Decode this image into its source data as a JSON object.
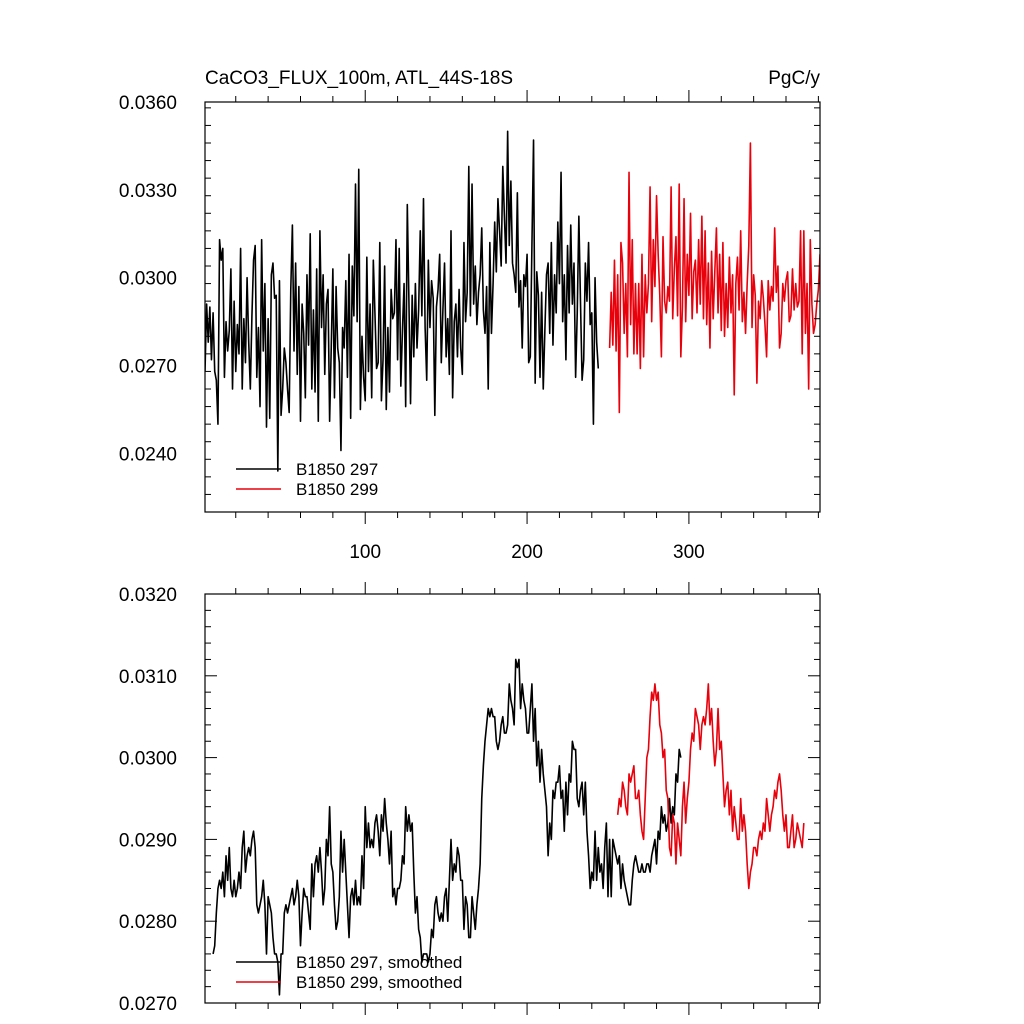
{
  "chart_data": [
    {
      "type": "line",
      "title": "CaCO3_FLUX_100m, ATL_44S-18S",
      "units": "PgC/y",
      "xlim": [
        1,
        381
      ],
      "ylim": [
        0.022,
        0.036
      ],
      "xticks": [
        100,
        200,
        300
      ],
      "yticks": [
        "0.0240",
        "0.0270",
        "0.0300",
        "0.0330",
        "0.0360"
      ],
      "legend_position": "bottom-left",
      "series": [
        {
          "name": "B1850 297",
          "color": "#000000",
          "x_start": 1,
          "values": [
            0.0268,
            0.0291,
            0.0278,
            0.029,
            0.0272,
            0.0288,
            0.0268,
            0.0265,
            0.025,
            0.0313,
            0.0306,
            0.031,
            0.0266,
            0.0285,
            0.0275,
            0.0282,
            0.0303,
            0.0262,
            0.0292,
            0.0268,
            0.0284,
            0.0274,
            0.031,
            0.0262,
            0.0286,
            0.0271,
            0.03,
            0.0278,
            0.0262,
            0.0287,
            0.0306,
            0.0311,
            0.0266,
            0.0283,
            0.0256,
            0.0313,
            0.0275,
            0.0298,
            0.0249,
            0.0286,
            0.0252,
            0.0301,
            0.0305,
            0.0293,
            0.0294,
            0.0234,
            0.0299,
            0.0253,
            0.0262,
            0.0276,
            0.0271,
            0.0262,
            0.0254,
            0.0296,
            0.0318,
            0.0275,
            0.0305,
            0.0267,
            0.0297,
            0.0251,
            0.0291,
            0.0281,
            0.0259,
            0.0301,
            0.0277,
            0.0315,
            0.0262,
            0.0289,
            0.0261,
            0.0303,
            0.0251,
            0.0316,
            0.0283,
            0.0301,
            0.0267,
            0.0291,
            0.0296,
            0.0251,
            0.0276,
            0.0303,
            0.0259,
            0.0297,
            0.0276,
            0.0271,
            0.0241,
            0.0283,
            0.0276,
            0.0299,
            0.0266,
            0.0308,
            0.0252,
            0.0304,
            0.0287,
            0.0332,
            0.0285,
            0.0337,
            0.0255,
            0.028,
            0.0266,
            0.0258,
            0.0307,
            0.0268,
            0.0291,
            0.0259,
            0.0306,
            0.0288,
            0.0269,
            0.0271,
            0.0312,
            0.0258,
            0.0272,
            0.0304,
            0.0255,
            0.0283,
            0.0261,
            0.0296,
            0.0286,
            0.0288,
            0.0313,
            0.0272,
            0.031,
            0.0263,
            0.0282,
            0.0298,
            0.0256,
            0.0325,
            0.0292,
            0.0257,
            0.0294,
            0.0273,
            0.0298,
            0.0276,
            0.0289,
            0.0316,
            0.0287,
            0.0327,
            0.0283,
            0.0265,
            0.0306,
            0.0283,
            0.0299,
            0.0293,
            0.0253,
            0.029,
            0.0296,
            0.0308,
            0.0271,
            0.0289,
            0.0305,
            0.0273,
            0.0286,
            0.0267,
            0.0316,
            0.0259,
            0.0285,
            0.0291,
            0.0273,
            0.0296,
            0.0276,
            0.0267,
            0.0312,
            0.0285,
            0.0295,
            0.0338,
            0.0287,
            0.0332,
            0.0291,
            0.0304,
            0.0284,
            0.0295,
            0.0301,
            0.0317,
            0.0289,
            0.0281,
            0.0297,
            0.0262,
            0.0312,
            0.0281,
            0.0298,
            0.0319,
            0.0302,
            0.0327,
            0.0316,
            0.0304,
            0.0338,
            0.0321,
            0.0305,
            0.035,
            0.0311,
            0.0333,
            0.0305,
            0.0301,
            0.0295,
            0.0329,
            0.029,
            0.0299,
            0.0276,
            0.0301,
            0.0297,
            0.0308,
            0.0271,
            0.0273,
            0.0311,
            0.0347,
            0.0264,
            0.0302,
            0.0294,
            0.0266,
            0.0295,
            0.0262,
            0.0282,
            0.0301,
            0.0305,
            0.0281,
            0.0312,
            0.0277,
            0.0301,
            0.0288,
            0.0319,
            0.0298,
            0.0336,
            0.0285,
            0.0301,
            0.0272,
            0.0311,
            0.0288,
            0.0318,
            0.0291,
            0.0305,
            0.0266,
            0.0288,
            0.0321,
            0.0292,
            0.0265,
            0.0272,
            0.0305,
            0.0292,
            0.0312,
            0.0284,
            0.0288,
            0.025,
            0.03,
            0.0278,
            0.0269
          ]
        },
        {
          "name": "B1850 299",
          "color": "#e8000b",
          "x_start": 251,
          "values": [
            0.0276,
            0.0295,
            0.0277,
            0.0306,
            0.0275,
            0.0301,
            0.0254,
            0.0312,
            0.0305,
            0.0281,
            0.0298,
            0.0273,
            0.0336,
            0.0284,
            0.0313,
            0.0274,
            0.0298,
            0.0274,
            0.0298,
            0.0269,
            0.0308,
            0.0273,
            0.0301,
            0.0288,
            0.0298,
            0.0331,
            0.0285,
            0.0313,
            0.0297,
            0.0328,
            0.0308,
            0.0294,
            0.0273,
            0.0314,
            0.0292,
            0.0288,
            0.0297,
            0.0292,
            0.0331,
            0.0286,
            0.0303,
            0.0314,
            0.0287,
            0.0332,
            0.0273,
            0.029,
            0.0327,
            0.0285,
            0.0308,
            0.0294,
            0.0322,
            0.0286,
            0.0302,
            0.0306,
            0.0288,
            0.0313,
            0.0291,
            0.0321,
            0.0286,
            0.0316,
            0.0284,
            0.0305,
            0.0276,
            0.0309,
            0.0286,
            0.0302,
            0.0317,
            0.0288,
            0.0308,
            0.0282,
            0.0312,
            0.028,
            0.0298,
            0.0283,
            0.0307,
            0.0288,
            0.0301,
            0.026,
            0.0298,
            0.0307,
            0.0289,
            0.0316,
            0.0285,
            0.0295,
            0.0281,
            0.0298,
            0.0311,
            0.0346,
            0.0283,
            0.0301,
            0.0294,
            0.0264,
            0.0292,
            0.0286,
            0.0299,
            0.0293,
            0.0284,
            0.0273,
            0.0299,
            0.0289,
            0.0297,
            0.0292,
            0.0317,
            0.0295,
            0.0304,
            0.0276,
            0.0281,
            0.0298,
            0.0292,
            0.0299,
            0.0302,
            0.0285,
            0.0287,
            0.0303,
            0.0289,
            0.0298,
            0.029,
            0.0292,
            0.0316,
            0.0274,
            0.0316,
            0.0281,
            0.0298,
            0.0262,
            0.0313,
            0.0291,
            0.0281,
            0.0284,
            0.0291,
            0.0296,
            0.0308
          ]
        }
      ]
    },
    {
      "type": "line",
      "title": "",
      "xlim": [
        1,
        381
      ],
      "ylim": [
        0.027,
        0.032
      ],
      "xticks": [
        100,
        200,
        300
      ],
      "yticks": [
        "0.0270",
        "0.0280",
        "0.0290",
        "0.0300",
        "0.0310",
        "0.0320"
      ],
      "legend_position": "bottom-left",
      "series": [
        {
          "name": "B1850 297, smoothed",
          "color": "#000000",
          "x_start": 6,
          "values": [
            0.0276,
            0.0277,
            0.0281,
            0.0284,
            0.0285,
            0.0284,
            0.0286,
            0.0283,
            0.0288,
            0.0285,
            0.0289,
            0.0284,
            0.0283,
            0.0285,
            0.0283,
            0.0284,
            0.0286,
            0.0284,
            0.0289,
            0.0291,
            0.0286,
            0.0288,
            0.0289,
            0.0288,
            0.029,
            0.0291,
            0.0289,
            0.0282,
            0.0281,
            0.0282,
            0.0283,
            0.0285,
            0.0282,
            0.0276,
            0.0283,
            0.0282,
            0.0281,
            0.0278,
            0.0276,
            0.0276,
            0.0275,
            0.0271,
            0.0276,
            0.0276,
            0.0281,
            0.0282,
            0.0281,
            0.0282,
            0.0283,
            0.0284,
            0.0282,
            0.0283,
            0.0285,
            0.0283,
            0.0277,
            0.0281,
            0.0284,
            0.0283,
            0.0283,
            0.0281,
            0.0279,
            0.0287,
            0.0283,
            0.0287,
            0.0288,
            0.0286,
            0.0289,
            0.0286,
            0.0282,
            0.0284,
            0.029,
            0.0288,
            0.0294,
            0.0287,
            0.0286,
            0.0282,
            0.0279,
            0.028,
            0.0283,
            0.0291,
            0.0286,
            0.029,
            0.0286,
            0.0282,
            0.0278,
            0.0283,
            0.0284,
            0.0282,
            0.0285,
            0.0282,
            0.0283,
            0.0282,
            0.0288,
            0.0284,
            0.0294,
            0.0289,
            0.0292,
            0.0289,
            0.029,
            0.0289,
            0.0292,
            0.0293,
            0.0291,
            0.0288,
            0.0293,
            0.0291,
            0.0295,
            0.0292,
            0.029,
            0.0287,
            0.0291,
            0.0283,
            0.0284,
            0.0282,
            0.0284,
            0.0284,
            0.0285,
            0.0288,
            0.0287,
            0.0294,
            0.0291,
            0.0293,
            0.0291,
            0.0292,
            0.0286,
            0.0281,
            0.0283,
            0.0279,
            0.0278,
            0.0275,
            0.0276,
            0.0276,
            0.0276,
            0.0275,
            0.0276,
            0.0279,
            0.0278,
            0.0282,
            0.0283,
            0.0281,
            0.028,
            0.0281,
            0.028,
            0.0283,
            0.0284,
            0.028,
            0.0285,
            0.029,
            0.0285,
            0.0287,
            0.0286,
            0.0289,
            0.0288,
            0.0285,
            0.0285,
            0.0279,
            0.0283,
            0.0282,
            0.0278,
            0.0278,
            0.0283,
            0.0281,
            0.0279,
            0.0282,
            0.0284,
            0.0287,
            0.0295,
            0.0299,
            0.0302,
            0.0304,
            0.0306,
            0.0305,
            0.0306,
            0.0305,
            0.0305,
            0.0302,
            0.0301,
            0.0302,
            0.0304,
            0.0305,
            0.0303,
            0.0303,
            0.0304,
            0.0309,
            0.0307,
            0.0306,
            0.0304,
            0.0312,
            0.0311,
            0.0312,
            0.0306,
            0.0309,
            0.0307,
            0.0306,
            0.0303,
            0.0303,
            0.0306,
            0.0309,
            0.0302,
            0.0306,
            0.0299,
            0.0302,
            0.0297,
            0.0301,
            0.0298,
            0.0296,
            0.0294,
            0.0288,
            0.0292,
            0.029,
            0.0296,
            0.0295,
            0.0297,
            0.0297,
            0.0299,
            0.0295,
            0.0296,
            0.0291,
            0.0297,
            0.0293,
            0.0298,
            0.0297,
            0.0302,
            0.0301,
            0.0301,
            0.0295,
            0.0294,
            0.0296,
            0.0297,
            0.0293,
            0.0297,
            0.0291,
            0.0288,
            0.0284,
            0.0286,
            0.0285,
            0.0291,
            0.0285,
            0.0289,
            0.0286,
            0.0287,
            0.0284,
            0.0289,
            0.0292,
            0.0283,
            0.029,
            0.0283,
            0.029,
            0.0289,
            0.0288,
            0.0287,
            0.0288,
            0.0284,
            0.0287,
            0.0285,
            0.0284,
            0.0283,
            0.0282,
            0.0282,
            0.0285,
            0.0287,
            0.0288,
            0.0287,
            0.0286,
            0.0286,
            0.0287,
            0.0286,
            0.0286,
            0.0287,
            0.0287,
            0.0286,
            0.0288,
            0.0289,
            0.029,
            0.0287,
            0.0291,
            0.029,
            0.0294,
            0.0292,
            0.0293,
            0.0291,
            0.0292,
            0.0295,
            0.0292,
            0.0294,
            0.0293,
            0.0298,
            0.0297,
            0.0301,
            0.03
          ]
        },
        {
          "name": "B1850 299, smoothed",
          "color": "#e8000b",
          "x_start": 256,
          "values": [
            0.0293,
            0.0295,
            0.0294,
            0.0297,
            0.0296,
            0.0294,
            0.0293,
            0.0298,
            0.0297,
            0.0298,
            0.0299,
            0.0295,
            0.0295,
            0.0296,
            0.0293,
            0.0291,
            0.029,
            0.0295,
            0.03,
            0.0301,
            0.0305,
            0.0308,
            0.0307,
            0.0309,
            0.0307,
            0.0308,
            0.0304,
            0.0303,
            0.03,
            0.0301,
            0.0296,
            0.0295,
            0.0289,
            0.0288,
            0.0293,
            0.0292,
            0.0287,
            0.0292,
            0.029,
            0.0288,
            0.0294,
            0.0297,
            0.0292,
            0.0295,
            0.0297,
            0.0301,
            0.0303,
            0.0302,
            0.0306,
            0.0305,
            0.0304,
            0.0301,
            0.0304,
            0.0305,
            0.0304,
            0.0306,
            0.0309,
            0.0304,
            0.0306,
            0.0302,
            0.0299,
            0.0301,
            0.0306,
            0.0301,
            0.0302,
            0.0298,
            0.0294,
            0.0296,
            0.0297,
            0.0293,
            0.0296,
            0.0291,
            0.0294,
            0.0292,
            0.029,
            0.029,
            0.0295,
            0.0291,
            0.0293,
            0.0291,
            0.0287,
            0.0284,
            0.0286,
            0.0287,
            0.0289,
            0.0289,
            0.0288,
            0.029,
            0.0291,
            0.029,
            0.0292,
            0.0291,
            0.0295,
            0.0293,
            0.0291,
            0.0293,
            0.0294,
            0.0296,
            0.0295,
            0.0297,
            0.0298,
            0.0296,
            0.0293,
            0.0291,
            0.0293,
            0.0289,
            0.0289,
            0.0291,
            0.0293,
            0.0289,
            0.029,
            0.0292,
            0.0291,
            0.029,
            0.0289,
            0.0292
          ]
        }
      ]
    }
  ]
}
